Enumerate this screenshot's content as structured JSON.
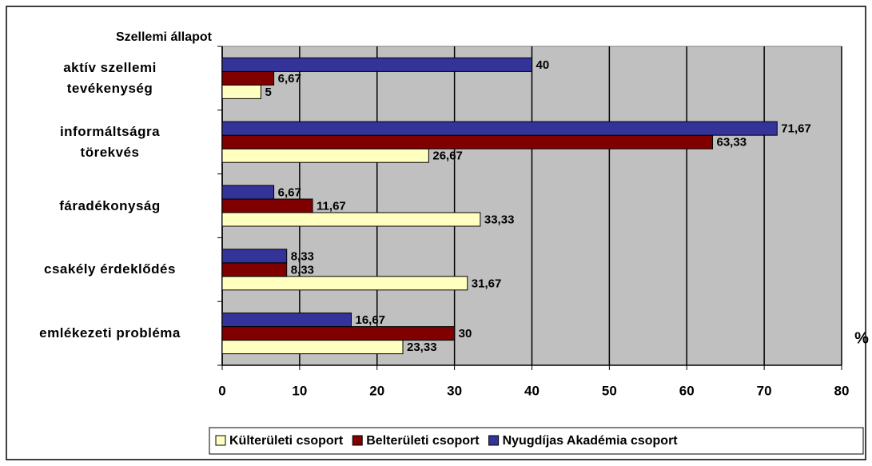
{
  "chart_data": {
    "type": "hbar",
    "title": "Szellemi állapot",
    "xlabel": "%",
    "categories": [
      "aktív szellemi\ntevékenység",
      "informáltságra\ntörekvés",
      "fáradékonyság",
      "csakély érdeklődés",
      "emlékezeti probléma"
    ],
    "series": [
      {
        "name": "Külterületi csoport",
        "color": "#ffffc0",
        "values": [
          5,
          26.67,
          33.33,
          31.67,
          23.33
        ],
        "value_labels": [
          "5",
          "26,67",
          "33,33",
          "31,67",
          "23,33"
        ]
      },
      {
        "name": "Belterületi csoport",
        "color": "#800000",
        "values": [
          6.67,
          63.33,
          11.67,
          8.33,
          30
        ],
        "value_labels": [
          "6,67",
          "63,33",
          "11,67",
          "8,33",
          "30"
        ]
      },
      {
        "name": "Nyugdíjas Akadémia csoport",
        "color": "#333399",
        "values": [
          40,
          71.67,
          6.67,
          8.33,
          16.67
        ],
        "value_labels": [
          "40",
          "71,67",
          "6,67",
          "8,33",
          "16,67"
        ]
      }
    ],
    "xlim": [
      0,
      80
    ],
    "xticks": [
      0,
      10,
      20,
      30,
      40,
      50,
      60,
      70,
      80
    ],
    "grid": true,
    "legend": "bottom"
  }
}
